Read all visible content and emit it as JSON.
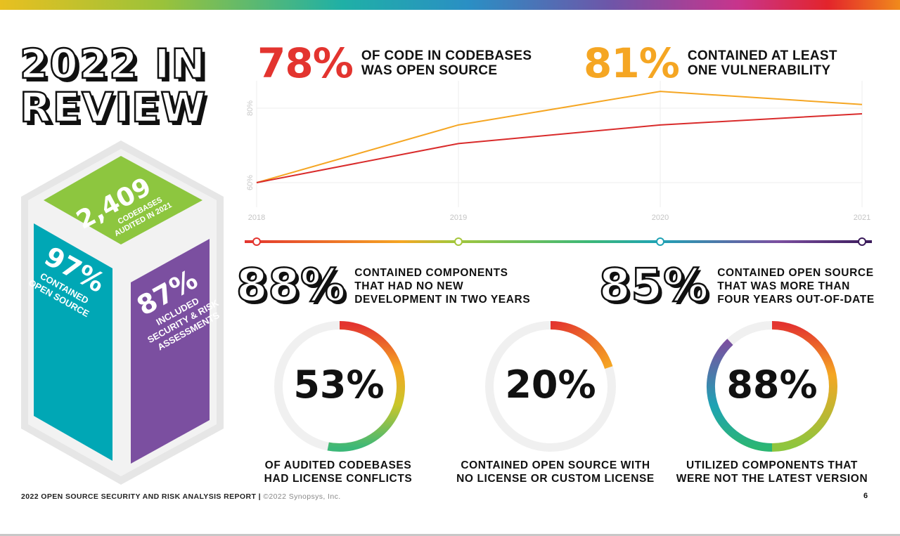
{
  "header": {
    "title_line1": "2022 IN",
    "title_line2": "REVIEW"
  },
  "cube": {
    "top_value": "2,409",
    "top_label_line1": "CODEBASES",
    "top_label_line2": "AUDITED IN 2021",
    "left_value": "97%",
    "left_label_line1": "CONTAINED",
    "left_label_line2": "OPEN SOURCE",
    "right_value": "87%",
    "right_label_line1": "INCLUDED",
    "right_label_line2": "SECURITY & RISK",
    "right_label_line3": "ASSESSMENTS",
    "colors": {
      "top": "#8dc63f",
      "left": "#00a7b5",
      "right": "#7b4fa0",
      "frame": "#e5e5e5"
    }
  },
  "headline_stats": {
    "open_source": {
      "value": "78%",
      "line1": "OF CODE IN CODEBASES",
      "line2": "WAS OPEN SOURCE",
      "color": "#e3342f"
    },
    "vulnerability": {
      "value": "81%",
      "line1": "CONTAINED AT LEAST",
      "line2": "ONE VULNERABILITY",
      "color": "#f5a623"
    }
  },
  "chart_data": {
    "type": "line",
    "x": [
      "2018",
      "2019",
      "2020",
      "2021"
    ],
    "y_ticks": [
      "60%",
      "80%"
    ],
    "ylim": [
      60,
      80
    ],
    "grid": true,
    "series": [
      {
        "color": "#f5a623",
        "values": [
          60,
          75.5,
          84.5,
          81
        ]
      },
      {
        "color": "#d92b2b",
        "values": [
          60,
          70.5,
          75.5,
          78.5
        ]
      }
    ]
  },
  "timeline": {
    "dots": [
      "2018",
      "2019",
      "2020",
      "2021"
    ],
    "dot_colors": [
      "#e3342f",
      "#a5c63b",
      "#1fa2b4",
      "#3a1a5a"
    ]
  },
  "mid_stats": {
    "no_development": {
      "value": "88%",
      "line1": "CONTAINED COMPONENTS",
      "line2": "THAT HAD NO NEW",
      "line3": "DEVELOPMENT IN TWO YEARS"
    },
    "out_of_date": {
      "value": "85%",
      "line1": "CONTAINED OPEN SOURCE",
      "line2": "THAT WAS MORE THAN",
      "line3": "FOUR YEARS OUT-OF-DATE"
    }
  },
  "donuts": [
    {
      "value": "53%",
      "fraction": 0.53,
      "line1": "OF AUDITED CODEBASES",
      "line2": "HAD LICENSE CONFLICTS"
    },
    {
      "value": "20%",
      "fraction": 0.2,
      "line1": "CONTAINED OPEN SOURCE WITH",
      "line2": "NO LICENSE OR CUSTOM LICENSE"
    },
    {
      "value": "88%",
      "fraction": 0.88,
      "line1": "UTILIZED COMPONENTS THAT",
      "line2": "WERE NOT THE LATEST VERSION"
    }
  ],
  "footer": {
    "report": "2022 OPEN SOURCE SECURITY AND RISK ANALYSIS REPORT",
    "separator": " | ",
    "copyright": "©2022 Synopsys, Inc.",
    "page": "6"
  }
}
